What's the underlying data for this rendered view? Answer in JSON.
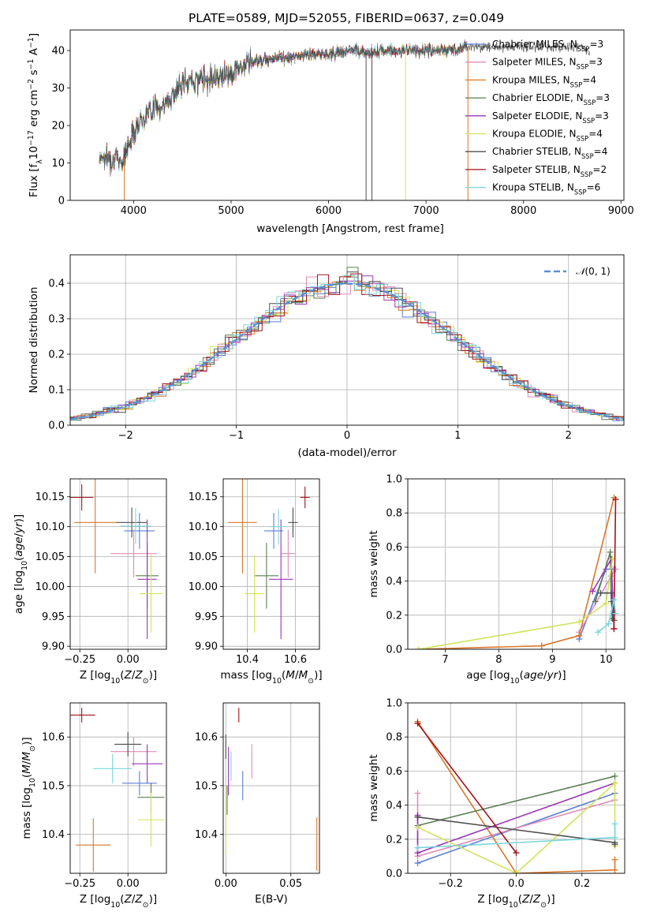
{
  "figure": {
    "title": "PLATE=0589, MJD=52055, FIBERID=0637, z=0.049"
  },
  "colors": {
    "Chabrier MILES": "#5b7fd6",
    "Salpeter MILES": "#e08bb8",
    "Kroupa MILES": "#d9772a",
    "Chabrier ELODIE": "#5b7d52",
    "Salpeter ELODIE": "#9a36b8",
    "Kroupa ELODIE": "#d2e25a",
    "Chabrier STELIB": "#4d4d4d",
    "Salpeter STELIB": "#a3131a",
    "Kroupa STELIB": "#79d6dc"
  },
  "chart_data": [
    {
      "id": "spectrum",
      "type": "line",
      "title": "PLATE=0589, MJD=52055, FIBERID=0637, z=0.049",
      "xlabel": "wavelength [Angstrom, rest frame]",
      "ylabel": "Flux [f_λ 10^-17 erg cm^-2 s^-1 A^-1]",
      "xlim": [
        3350,
        9030
      ],
      "ylim": [
        0,
        45.5
      ],
      "xticks": [
        4000,
        5000,
        6000,
        7000,
        8000,
        9000
      ],
      "yticks": [
        0,
        10,
        20,
        30,
        40
      ],
      "grid": false,
      "legend_position": "right",
      "legend": [
        "Chabrier MILES, N_SSP=3",
        "Salpeter MILES, N_SSP=3",
        "Kroupa MILES, N_SSP=4",
        "Chabrier ELODIE, N_SSP=3",
        "Salpeter ELODIE, N_SSP=3",
        "Kroupa ELODIE, N_SSP=4",
        "Chabrier STELIB, N_SSP=4",
        "Salpeter STELIB, N_SSP=2",
        "Kroupa STELIB, N_SSP=6"
      ],
      "continuum": [
        [
          3650,
          12
        ],
        [
          3800,
          11
        ],
        [
          3900,
          11
        ],
        [
          4000,
          19
        ],
        [
          4100,
          22
        ],
        [
          4200,
          25
        ],
        [
          4300,
          25
        ],
        [
          4400,
          28
        ],
        [
          4500,
          31
        ],
        [
          4600,
          32
        ],
        [
          4800,
          33
        ],
        [
          5000,
          34
        ],
        [
          5200,
          37
        ],
        [
          5400,
          38
        ],
        [
          5600,
          38
        ],
        [
          5800,
          39
        ],
        [
          6000,
          39
        ],
        [
          6200,
          40
        ],
        [
          6400,
          39.5
        ],
        [
          6600,
          40
        ],
        [
          6800,
          40
        ],
        [
          7000,
          40
        ],
        [
          7200,
          40
        ],
        [
          7400,
          41
        ],
        [
          7600,
          41
        ],
        [
          7800,
          41
        ],
        [
          8000,
          41
        ],
        [
          8200,
          41
        ],
        [
          8400,
          41
        ],
        [
          8600,
          41
        ],
        [
          8680,
          40
        ]
      ],
      "model_range": [
        3650,
        7420
      ],
      "data_range": [
        3650,
        8680
      ],
      "dropouts": [
        [
          3905,
          "Kroupa MILES"
        ],
        [
          6385,
          "Chabrier STELIB"
        ],
        [
          6445,
          "Chabrier STELIB"
        ],
        [
          6790,
          "Kroupa ELODIE"
        ],
        [
          7430,
          "Kroupa MILES"
        ]
      ]
    },
    {
      "id": "residuals",
      "type": "line",
      "xlabel": "(data-model)/error",
      "ylabel": "Normed distribution",
      "xlim": [
        -2.5,
        2.5
      ],
      "ylim": [
        0,
        0.48
      ],
      "xticks": [
        -2,
        -1,
        0,
        1,
        2
      ],
      "yticks": [
        0.0,
        0.1,
        0.2,
        0.3,
        0.4
      ],
      "grid": true,
      "legend_position": "top-right",
      "legend": [
        "𝒩(0,1)"
      ],
      "gaussian": {
        "mean": 0,
        "sigma": 1
      }
    },
    {
      "id": "age-vs-Z",
      "type": "scatter",
      "xlabel": "Z [log10(Z/Z⊙)]",
      "ylabel": "age  [log10(age/yr)]",
      "xlim": [
        -0.3,
        0.2
      ],
      "ylim": [
        9.895,
        10.18
      ],
      "xticks": [
        -0.25,
        0.0
      ],
      "yticks": [
        9.9,
        9.95,
        10.0,
        10.05,
        10.1,
        10.15
      ],
      "grid": true,
      "points": [
        {
          "series": "Chabrier MILES",
          "x": 0.06,
          "xerr": 0.08,
          "y": 10.093,
          "yerr": 0.03
        },
        {
          "series": "Salpeter MILES",
          "x": 0.03,
          "xerr": 0.12,
          "y": 10.055,
          "yerr": 0.04
        },
        {
          "series": "Kroupa MILES",
          "x": -0.17,
          "xerr": 0.11,
          "y": 10.107,
          "yerr": 0.085
        },
        {
          "series": "Chabrier ELODIE",
          "x": 0.1,
          "xerr": 0.06,
          "y": 10.018,
          "yerr": 0.055
        },
        {
          "series": "Salpeter ELODIE",
          "x": 0.1,
          "xerr": 0.05,
          "y": 10.012,
          "yerr": 0.1
        },
        {
          "series": "Kroupa ELODIE",
          "x": 0.12,
          "xerr": 0.06,
          "y": 9.988,
          "yerr": 0.065
        },
        {
          "series": "Chabrier STELIB",
          "x": 0.02,
          "xerr": 0.08,
          "y": 10.107,
          "yerr": 0.025
        },
        {
          "series": "Salpeter STELIB",
          "x": -0.24,
          "xerr": 0.06,
          "y": 10.149,
          "yerr": 0.022
        },
        {
          "series": "Kroupa STELIB",
          "x": 0.04,
          "xerr": 0.08,
          "y": 10.101,
          "yerr": 0.03
        }
      ]
    },
    {
      "id": "age-vs-mass",
      "type": "scatter",
      "xlabel": "mass [log10(M/M⊙)]",
      "ylabel": "",
      "xlim": [
        10.3,
        10.7
      ],
      "ylim": [
        9.895,
        10.18
      ],
      "xticks": [
        10.4,
        10.6
      ],
      "yticks": [
        9.9,
        9.95,
        10.0,
        10.05,
        10.1,
        10.15
      ],
      "grid": true,
      "points": [
        {
          "series": "Chabrier MILES",
          "x": 10.51,
          "xerr": 0.04,
          "y": 10.093,
          "yerr": 0.03
        },
        {
          "series": "Salpeter MILES",
          "x": 10.57,
          "xerr": 0.03,
          "y": 10.055,
          "yerr": 0.04
        },
        {
          "series": "Kroupa MILES",
          "x": 10.38,
          "xerr": 0.06,
          "y": 10.107,
          "yerr": 0.085
        },
        {
          "series": "Chabrier ELODIE",
          "x": 10.48,
          "xerr": 0.05,
          "y": 10.018,
          "yerr": 0.055
        },
        {
          "series": "Salpeter ELODIE",
          "x": 10.54,
          "xerr": 0.05,
          "y": 10.012,
          "yerr": 0.1
        },
        {
          "series": "Kroupa ELODIE",
          "x": 10.43,
          "xerr": 0.04,
          "y": 9.988,
          "yerr": 0.065
        },
        {
          "series": "Chabrier STELIB",
          "x": 10.59,
          "xerr": 0.02,
          "y": 10.107,
          "yerr": 0.025
        },
        {
          "series": "Salpeter STELIB",
          "x": 10.64,
          "xerr": 0.02,
          "y": 10.149,
          "yerr": 0.018
        },
        {
          "series": "Kroupa STELIB",
          "x": 10.53,
          "xerr": 0.04,
          "y": 10.1,
          "yerr": 0.03
        }
      ]
    },
    {
      "id": "weight-vs-age",
      "type": "line",
      "xlabel": "age  [log10(age/yr)]",
      "ylabel": "mass weight",
      "xlim": [
        6.3,
        10.35
      ],
      "ylim": [
        0,
        1.0
      ],
      "xticks": [
        7,
        8,
        9,
        10
      ],
      "yticks": [
        0.0,
        0.2,
        0.4,
        0.6,
        0.8,
        1.0
      ],
      "grid": true,
      "series": [
        {
          "name": "Chabrier MILES",
          "points": [
            [
              9.5,
              0.06
            ],
            [
              10.0,
              0.47
            ],
            [
              10.15,
              0.47
            ]
          ]
        },
        {
          "name": "Salpeter MILES",
          "points": [
            [
              9.5,
              0.1
            ],
            [
              10.1,
              0.43
            ],
            [
              10.18,
              0.47
            ]
          ]
        },
        {
          "name": "Kroupa MILES",
          "points": [
            [
              6.5,
              0.0
            ],
            [
              8.8,
              0.02
            ],
            [
              9.5,
              0.08
            ],
            [
              10.15,
              0.89
            ]
          ]
        },
        {
          "name": "Chabrier ELODIE",
          "points": [
            [
              9.8,
              0.28
            ],
            [
              10.08,
              0.57
            ],
            [
              10.1,
              0.28
            ]
          ]
        },
        {
          "name": "Salpeter ELODIE",
          "points": [
            [
              9.75,
              0.34
            ],
            [
              10.1,
              0.53
            ],
            [
              10.15,
              0.12
            ]
          ]
        },
        {
          "name": "Kroupa ELODIE",
          "points": [
            [
              6.5,
              0.0
            ],
            [
              9.5,
              0.16
            ],
            [
              10.0,
              0.27
            ],
            [
              10.12,
              0.53
            ]
          ]
        },
        {
          "name": "Chabrier STELIB",
          "points": [
            [
              9.9,
              0.33
            ],
            [
              10.1,
              0.33
            ],
            [
              10.12,
              0.18
            ],
            [
              10.15,
              0.17
            ]
          ]
        },
        {
          "name": "Salpeter STELIB",
          "points": [
            [
              10.15,
              0.12
            ],
            [
              10.18,
              0.88
            ]
          ]
        },
        {
          "name": "Kroupa STELIB",
          "points": [
            [
              9.85,
              0.1
            ],
            [
              10.05,
              0.15
            ],
            [
              10.15,
              0.29
            ],
            [
              10.18,
              0.21
            ]
          ]
        }
      ]
    },
    {
      "id": "mass-vs-Z",
      "type": "scatter",
      "xlabel": "Z [log10(Z/Z⊙)]",
      "ylabel": "mass [log10(M/M⊙)]",
      "xlim": [
        -0.3,
        0.2
      ],
      "ylim": [
        10.32,
        10.67
      ],
      "xticks": [
        -0.25,
        0.0
      ],
      "yticks": [
        10.4,
        10.5,
        10.6
      ],
      "grid": true,
      "points": [
        {
          "series": "Chabrier MILES",
          "x": 0.06,
          "xerr": 0.09,
          "y": 10.505,
          "yerr": 0.025
        },
        {
          "series": "Salpeter MILES",
          "x": 0.03,
          "xerr": 0.12,
          "y": 10.57,
          "yerr": 0.03
        },
        {
          "series": "Kroupa MILES",
          "x": -0.18,
          "xerr": 0.09,
          "y": 10.378,
          "yerr": 0.055
        },
        {
          "series": "Chabrier ELODIE",
          "x": 0.12,
          "xerr": 0.07,
          "y": 10.476,
          "yerr": 0.03
        },
        {
          "series": "Salpeter ELODIE",
          "x": 0.1,
          "xerr": 0.08,
          "y": 10.545,
          "yerr": 0.04
        },
        {
          "series": "Kroupa ELODIE",
          "x": 0.12,
          "xerr": 0.07,
          "y": 10.43,
          "yerr": 0.055
        },
        {
          "series": "Chabrier STELIB",
          "x": 0.0,
          "xerr": 0.07,
          "y": 10.585,
          "yerr": 0.025
        },
        {
          "series": "Salpeter STELIB",
          "x": -0.24,
          "xerr": 0.07,
          "y": 10.645,
          "yerr": 0.015
        },
        {
          "series": "Kroupa STELIB",
          "x": -0.08,
          "xerr": 0.1,
          "y": 10.535,
          "yerr": 0.03
        }
      ]
    },
    {
      "id": "mass-vs-ebv",
      "type": "scatter",
      "xlabel": "E(B-V)",
      "ylabel": "",
      "xlim": [
        -0.002,
        0.072
      ],
      "ylim": [
        10.32,
        10.67
      ],
      "xticks": [
        0.0,
        0.05
      ],
      "yticks": [
        10.4,
        10.5,
        10.6
      ],
      "grid": true,
      "points": [
        {
          "series": "Chabrier MILES",
          "x": 0.013,
          "y": 10.5,
          "yerr": 0.03
        },
        {
          "series": "Salpeter MILES",
          "x": 0.02,
          "y": 10.55,
          "yerr": 0.035
        },
        {
          "series": "Kroupa MILES",
          "x": 0.07,
          "y": 10.38,
          "yerr": 0.055
        },
        {
          "series": "Chabrier ELODIE",
          "x": 0.001,
          "y": 10.47,
          "yerr": 0.03
        },
        {
          "series": "Salpeter ELODIE",
          "x": 0.002,
          "y": 10.53,
          "yerr": 0.05
        },
        {
          "series": "Kroupa ELODIE",
          "x": 0.0,
          "y": 10.43,
          "yerr": 0.07
        },
        {
          "series": "Chabrier STELIB",
          "x": 0.0,
          "y": 10.58,
          "yerr": 0.025
        },
        {
          "series": "Salpeter STELIB",
          "x": 0.01,
          "y": 10.645,
          "yerr": 0.015
        },
        {
          "series": "Kroupa STELIB",
          "x": 0.004,
          "y": 10.54,
          "yerr": 0.03
        }
      ]
    },
    {
      "id": "weight-vs-Z",
      "type": "line",
      "xlabel": "Z [log10(Z/Z⊙)]",
      "ylabel": "mass weight",
      "xlim": [
        -0.33,
        0.33
      ],
      "ylim": [
        0,
        1.0
      ],
      "xticks": [
        -0.2,
        0.0,
        0.2
      ],
      "yticks": [
        0.0,
        0.2,
        0.4,
        0.6,
        0.8,
        1.0
      ],
      "grid": true,
      "series": [
        {
          "name": "Chabrier MILES",
          "points": [
            [
              -0.3,
              0.06
            ],
            [
              0.3,
              0.47
            ]
          ]
        },
        {
          "name": "Salpeter MILES",
          "points": [
            [
              -0.3,
              0.47
            ],
            [
              -0.3,
              0.1
            ],
            [
              0.3,
              0.43
            ]
          ]
        },
        {
          "name": "Kroupa MILES",
          "points": [
            [
              -0.3,
              0.89
            ],
            [
              0.0,
              0.0
            ],
            [
              0.3,
              0.02
            ],
            [
              0.3,
              0.08
            ]
          ]
        },
        {
          "name": "Chabrier ELODIE",
          "points": [
            [
              -0.3,
              0.28
            ],
            [
              0.3,
              0.57
            ]
          ]
        },
        {
          "name": "Salpeter ELODIE",
          "points": [
            [
              -0.3,
              0.34
            ],
            [
              -0.3,
              0.12
            ],
            [
              0.3,
              0.53
            ]
          ]
        },
        {
          "name": "Kroupa ELODIE",
          "points": [
            [
              -0.3,
              0.27
            ],
            [
              0.0,
              0.0
            ],
            [
              0.3,
              0.53
            ],
            [
              0.3,
              0.16
            ]
          ]
        },
        {
          "name": "Chabrier STELIB",
          "points": [
            [
              -0.3,
              0.33
            ],
            [
              -0.3,
              0.33
            ],
            [
              0.3,
              0.18
            ],
            [
              0.3,
              0.17
            ]
          ]
        },
        {
          "name": "Salpeter STELIB",
          "points": [
            [
              -0.3,
              0.88
            ],
            [
              0.0,
              0.12
            ]
          ]
        },
        {
          "name": "Kroupa STELIB",
          "points": [
            [
              -0.3,
              0.15
            ],
            [
              -0.3,
              0.15
            ],
            [
              0.3,
              0.21
            ],
            [
              0.3,
              0.29
            ]
          ]
        }
      ]
    }
  ]
}
